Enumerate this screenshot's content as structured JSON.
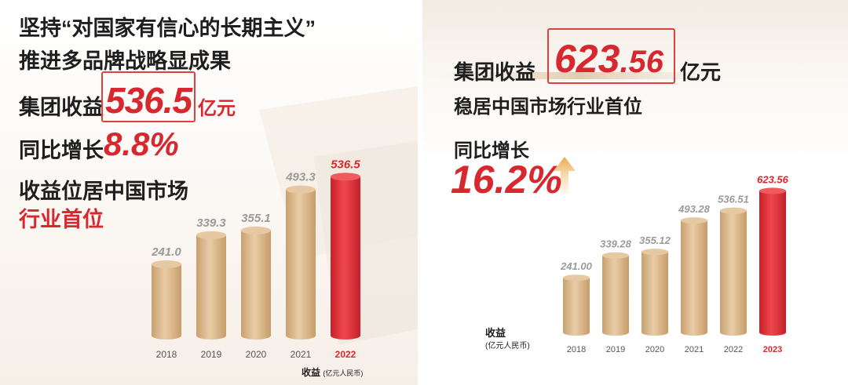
{
  "left_panel": {
    "headline_line1": "坚持“对国家有信心的长期主义”",
    "headline_line2": "推进多品牌战略显成果",
    "revenue_label": "集团收益",
    "revenue_value": "536.5",
    "revenue_unit": "亿元",
    "growth_label": "同比增长",
    "growth_value": "8.8%",
    "rank_line1": "收益位居中国市场",
    "rank_line2": "行业首位",
    "axis_caption_main": "收益",
    "axis_caption_unit": "(亿元人民币)"
  },
  "right_panel": {
    "revenue_label": "集团收益",
    "revenue_value_int": "623",
    "revenue_value_dec": ".56",
    "revenue_unit": "亿元",
    "rank_line": "稳居中国市场行业首位",
    "growth_label": "同比增长",
    "growth_value": "16.2%",
    "axis_caption_main": "收益",
    "axis_caption_unit": "(亿元人民币)"
  },
  "colors": {
    "accent_red": "#d7282f",
    "bar_gold": "#d9b48a",
    "bar_red": "#e2383e",
    "box_outline": "#e0403a"
  },
  "chart_data": [
    {
      "type": "bar",
      "categories": [
        "2018",
        "2019",
        "2020",
        "2021",
        "2022"
      ],
      "values": [
        241.0,
        339.3,
        355.1,
        493.3,
        536.5
      ],
      "value_labels": [
        "241.0",
        "339.3",
        "355.1",
        "493.3",
        "536.5"
      ],
      "highlight_category": "2022",
      "ylabel": "收益 (亿元人民币)",
      "ylim": [
        0,
        540
      ],
      "grid": false,
      "legend": "none"
    },
    {
      "type": "bar",
      "categories": [
        "2018",
        "2019",
        "2020",
        "2021",
        "2022",
        "2023"
      ],
      "values": [
        241.0,
        339.28,
        355.12,
        493.28,
        536.51,
        623.56
      ],
      "value_labels": [
        "241.00",
        "339.28",
        "355.12",
        "493.28",
        "536.51",
        "623.56"
      ],
      "highlight_category": "2023",
      "ylabel": "收益 (亿元人民币)",
      "ylim": [
        0,
        625
      ],
      "grid": false,
      "legend": "none"
    }
  ]
}
